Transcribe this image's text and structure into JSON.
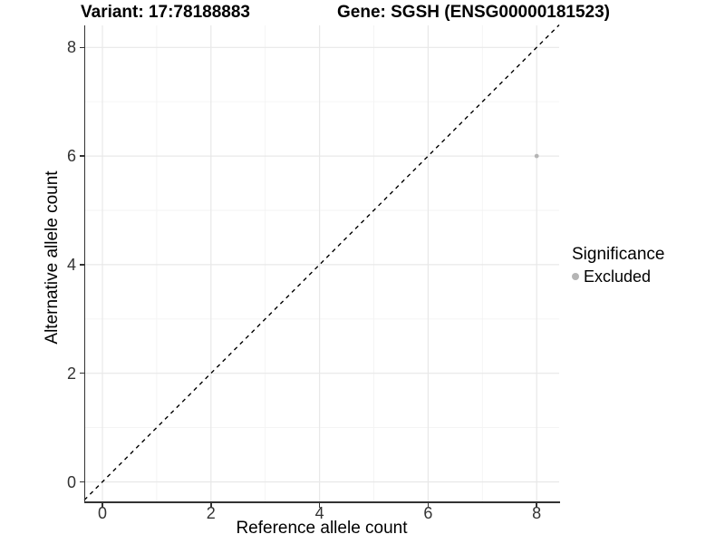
{
  "colors": {
    "background": "#ffffff",
    "axis_line": "#333333",
    "tick_text": "#333333",
    "grid_major": "#e8e8e8",
    "grid_minor": "#f3f3f3",
    "reference_line": "#000000",
    "point": "#b5b5b5"
  },
  "chart_data": {
    "type": "scatter",
    "title_left": "Variant: 17:78188883",
    "title_right": "Gene: SGSH (ENSG00000181523)",
    "xlabel": "Reference allele count",
    "ylabel": "Alternative allele count",
    "xlim": [
      -0.35,
      8.41
    ],
    "ylim": [
      -0.35,
      8.41
    ],
    "xticks": [
      0,
      2,
      4,
      6,
      8
    ],
    "yticks": [
      0,
      2,
      4,
      6,
      8
    ],
    "minor_xticks": [
      1,
      3,
      5,
      7
    ],
    "minor_yticks": [
      1,
      3,
      5,
      7
    ],
    "grid": true,
    "series": [
      {
        "name": "Excluded",
        "color": "#b5b5b5",
        "points": [
          {
            "x": 8,
            "y": 6
          }
        ]
      }
    ],
    "reference_line": {
      "type": "identity",
      "style": "dashed",
      "color": "#000000"
    },
    "legend": {
      "title": "Significance",
      "position": "right",
      "items": [
        {
          "label": "Excluded",
          "color": "#b5b5b5"
        }
      ]
    }
  }
}
